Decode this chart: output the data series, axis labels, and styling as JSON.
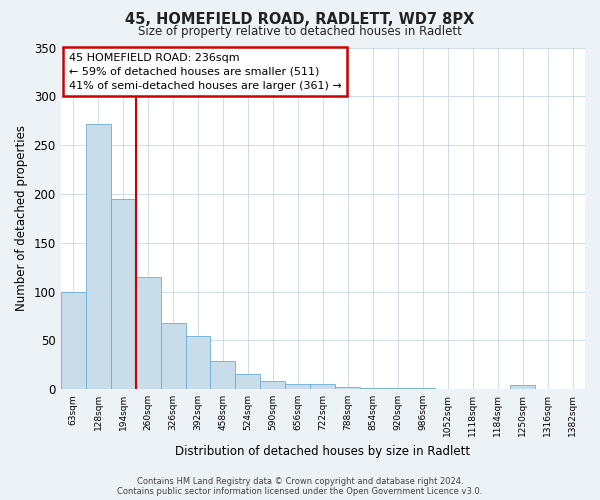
{
  "title": "45, HOMEFIELD ROAD, RADLETT, WD7 8PX",
  "subtitle": "Size of property relative to detached houses in Radlett",
  "xlabel": "Distribution of detached houses by size in Radlett",
  "ylabel": "Number of detached properties",
  "bin_labels": [
    "63sqm",
    "128sqm",
    "194sqm",
    "260sqm",
    "326sqm",
    "392sqm",
    "458sqm",
    "524sqm",
    "590sqm",
    "656sqm",
    "722sqm",
    "788sqm",
    "854sqm",
    "920sqm",
    "986sqm",
    "1052sqm",
    "1118sqm",
    "1184sqm",
    "1250sqm",
    "1316sqm",
    "1382sqm"
  ],
  "bar_heights": [
    100,
    272,
    195,
    115,
    68,
    54,
    29,
    16,
    8,
    5,
    5,
    2,
    1,
    1,
    1,
    0,
    0,
    0,
    4,
    0,
    0
  ],
  "bar_color": "#c8dcea",
  "bar_edge_color": "#6aaed6",
  "vline_color": "#cc0000",
  "annotation_text": "45 HOMEFIELD ROAD: 236sqm\n← 59% of detached houses are smaller (511)\n41% of semi-detached houses are larger (361) →",
  "annotation_box_color": "#cc0000",
  "ylim": [
    0,
    350
  ],
  "yticks": [
    0,
    50,
    100,
    150,
    200,
    250,
    300,
    350
  ],
  "footer_line1": "Contains HM Land Registry data © Crown copyright and database right 2024.",
  "footer_line2": "Contains public sector information licensed under the Open Government Licence v3.0.",
  "background_color": "#edf2f7",
  "plot_bg_color": "#ffffff",
  "grid_color": "#c8d8e8"
}
